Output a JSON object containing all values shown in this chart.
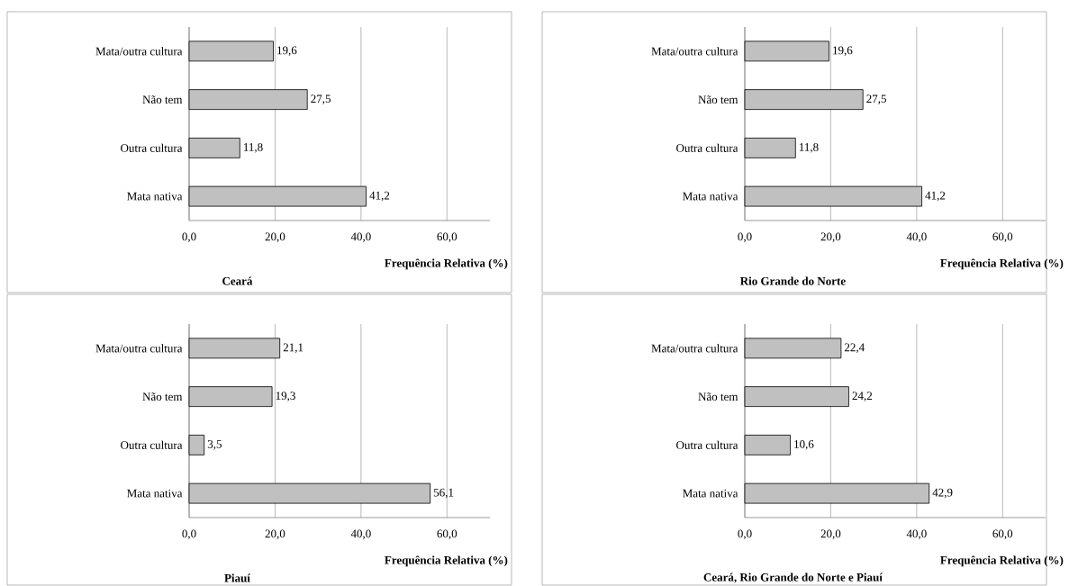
{
  "chart_data": [
    {
      "type": "bar",
      "orientation": "horizontal",
      "title": "Ceará",
      "xlabel": "Frequência Relativa (%)",
      "categories": [
        "Mata/outra cultura",
        "Não tem",
        "Outra cultura",
        "Mata nativa"
      ],
      "values": [
        19.6,
        27.5,
        11.8,
        41.2
      ],
      "value_labels": [
        "19,6",
        "27,5",
        "11,8",
        "41,2"
      ],
      "color": "#c0c0c0",
      "xlim": [
        0,
        70
      ],
      "xticks": [
        {
          "value": 0,
          "label": "0,0"
        },
        {
          "value": 20,
          "label": "20,0"
        },
        {
          "value": 40,
          "label": "40,0"
        },
        {
          "value": 60,
          "label": "60,0"
        }
      ],
      "grid": "x"
    },
    {
      "type": "bar",
      "orientation": "horizontal",
      "title": "Rio Grande do Norte",
      "xlabel": "Frequência Relativa (%)",
      "categories": [
        "Mata/outra cultura",
        "Não tem",
        "Outra cultura",
        "Mata nativa"
      ],
      "values": [
        19.6,
        27.5,
        11.8,
        41.2
      ],
      "value_labels": [
        "19,6",
        "27,5",
        "11,8",
        "41,2"
      ],
      "color": "#c0c0c0",
      "xlim": [
        0,
        70
      ],
      "xticks": [
        {
          "value": 0,
          "label": "0,0"
        },
        {
          "value": 20,
          "label": "20,0"
        },
        {
          "value": 40,
          "label": "40,0"
        },
        {
          "value": 60,
          "label": "60,0"
        }
      ],
      "grid": "x"
    },
    {
      "type": "bar",
      "orientation": "horizontal",
      "title": "Piauí",
      "xlabel": "Frequência Relativa (%)",
      "categories": [
        "Mata/outra cultura",
        "Não tem",
        "Outra cultura",
        "Mata nativa"
      ],
      "values": [
        21.1,
        19.3,
        3.5,
        56.1
      ],
      "value_labels": [
        "21,1",
        "19,3",
        "3,5",
        "56,1"
      ],
      "color": "#c0c0c0",
      "xlim": [
        0,
        70
      ],
      "xticks": [
        {
          "value": 0,
          "label": "0,0"
        },
        {
          "value": 20,
          "label": "20,0"
        },
        {
          "value": 40,
          "label": "40,0"
        },
        {
          "value": 60,
          "label": "60,0"
        }
      ],
      "grid": "x"
    },
    {
      "type": "bar",
      "orientation": "horizontal",
      "title": "Ceará, Rio Grande do Norte e Piauí",
      "xlabel": "Frequência Relativa (%)",
      "categories": [
        "Mata/outra cultura",
        "Não tem",
        "Outra cultura",
        "Mata nativa"
      ],
      "values": [
        22.4,
        24.2,
        10.6,
        42.9
      ],
      "value_labels": [
        "22,4",
        "24,2",
        "10,6",
        "42,9"
      ],
      "color": "#c0c0c0",
      "xlim": [
        0,
        70
      ],
      "xticks": [
        {
          "value": 0,
          "label": "0,0"
        },
        {
          "value": 20,
          "label": "20,0"
        },
        {
          "value": 40,
          "label": "40,0"
        },
        {
          "value": 60,
          "label": "60,0"
        }
      ],
      "grid": "x"
    }
  ]
}
